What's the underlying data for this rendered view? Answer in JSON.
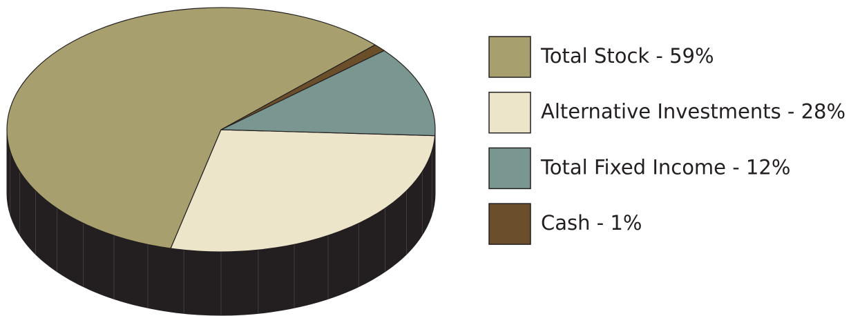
{
  "chart_data": {
    "type": "pie",
    "categories": [
      "Total Stock - 59%",
      "Alternative Investments - 28%",
      "Total Fixed Income - 12%",
      "Cash - 1%"
    ],
    "values": [
      59,
      28,
      12,
      1
    ],
    "colors": [
      "#a89f6e",
      "#ece5c9",
      "#7a9690",
      "#6b4f2b"
    ]
  }
}
